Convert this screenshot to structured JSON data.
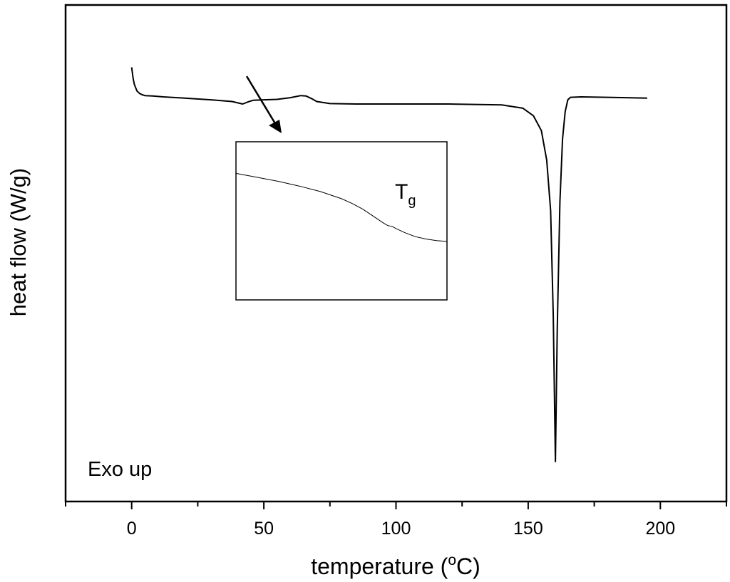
{
  "chart_data": {
    "type": "line",
    "xlabel": "temperature (",
    "xlabel_unit_sup": "o",
    "xlabel_unit": "C)",
    "ylabel": "heat flow (W/g)",
    "xlim": [
      -25,
      225
    ],
    "xticks": [
      0,
      50,
      100,
      150,
      200
    ],
    "xtick_labels": [
      "0",
      "50",
      "100",
      "150",
      "200"
    ],
    "y_tick_labels_shown": false,
    "ylim": [
      0,
      100
    ],
    "annotation": "Exo up",
    "series": [
      {
        "x": [
          0,
          0.5,
          1,
          2,
          3,
          4,
          5,
          8,
          12,
          20,
          30,
          38,
          42,
          44,
          46,
          50,
          55,
          60,
          64,
          66,
          68,
          70,
          75,
          85,
          100,
          120,
          140,
          148,
          152,
          155,
          157,
          158.5,
          159.5,
          160.3,
          161,
          162,
          163,
          164,
          165,
          166,
          170,
          180,
          195
        ],
        "y": [
          94,
          91.5,
          90,
          88.4,
          87.8,
          87.5,
          87.3,
          87.2,
          87,
          86.7,
          86.3,
          85.9,
          85.3,
          85.8,
          86.2,
          86.3,
          86.4,
          86.8,
          87.3,
          87.2,
          86.6,
          85.9,
          85.4,
          85.3,
          85.3,
          85.3,
          85.1,
          84.3,
          82.5,
          79,
          72,
          60,
          35,
          0.5,
          32,
          62,
          77,
          83.5,
          86.3,
          86.9,
          87,
          86.9,
          86.7
        ]
      }
    ],
    "inset": {
      "label_main": "T",
      "label_sub": "g",
      "xlim": [
        0,
        100
      ],
      "ylim": [
        0,
        100
      ],
      "x": [
        0,
        10,
        20,
        30,
        40,
        50,
        55,
        60,
        65,
        70,
        72,
        74,
        76,
        80,
        85,
        90,
        95,
        100
      ],
      "y": [
        80,
        77.5,
        75,
        72,
        68.5,
        64,
        61,
        57.5,
        53,
        48.5,
        47,
        46.5,
        45,
        42.5,
        40,
        38.5,
        37.5,
        37
      ]
    }
  }
}
